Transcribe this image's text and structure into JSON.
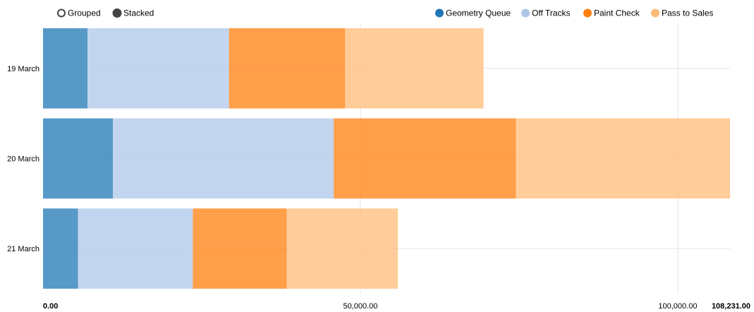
{
  "controls": [
    {
      "label": "Grouped",
      "selected": false
    },
    {
      "label": "Stacked",
      "selected": true
    }
  ],
  "chart_data": {
    "type": "bar",
    "orientation": "horizontal",
    "stacked": true,
    "categories": [
      "19 March",
      "20 March",
      "21 March"
    ],
    "series": [
      {
        "name": "Geometry Queue",
        "color": "#1f77b4",
        "values": [
          7000,
          11000,
          5500
        ]
      },
      {
        "name": "Off Tracks",
        "color": "#aec7e8",
        "values": [
          22300,
          34800,
          18100
        ]
      },
      {
        "name": "Paint Check",
        "color": "#ff7f0e",
        "values": [
          18300,
          28700,
          14800
        ]
      },
      {
        "name": "Pass to Sales",
        "color": "#ffbb78",
        "values": [
          21800,
          33731,
          17500
        ]
      }
    ],
    "x_ticks": [
      {
        "value": 0,
        "label": "0.00"
      },
      {
        "value": 50000,
        "label": "50,000.00"
      },
      {
        "value": 100000,
        "label": "100,000.00"
      }
    ],
    "x_max": {
      "value": 108231,
      "label": "108,231.00"
    },
    "xlim": [
      0,
      108231
    ],
    "grid": true,
    "legend_position": "top-right"
  }
}
